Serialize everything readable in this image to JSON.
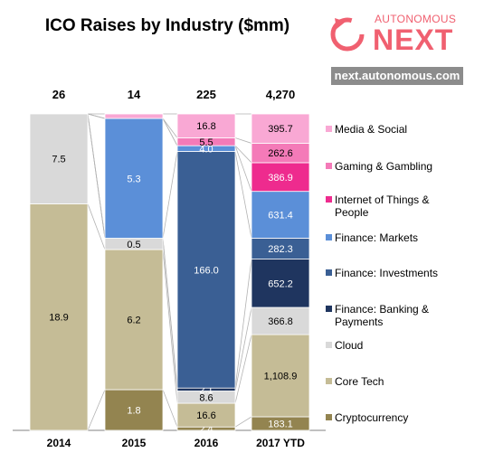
{
  "title": "ICO Raises by Industry ($mm)",
  "logo": {
    "top_text": "AUTONOMOUS",
    "main_text": "NEXT"
  },
  "site": "next.autonomous.com",
  "colors": {
    "media_social": "#f9a8d4",
    "gaming": "#f47ab8",
    "iot": "#ee2b8e",
    "finance_markets": "#5b8fd8",
    "finance_investments": "#3a5f94",
    "finance_banking": "#1f355f",
    "cloud": "#d9d9d9",
    "core_tech": "#c5bc96",
    "crypto": "#938450",
    "brand": "#f06070"
  },
  "chart_data": {
    "type": "bar",
    "stacked": true,
    "normalized_to_100_percent": true,
    "title": "ICO Raises by Industry ($mm)",
    "categories": [
      "2014",
      "2015",
      "2016",
      "2017 YTD"
    ],
    "totals": [
      "26",
      "14",
      "225",
      "4,270"
    ],
    "series": [
      {
        "name": "Cryptocurrency",
        "color": "crypto",
        "values": [
          null,
          1.8,
          2.4,
          183.1
        ],
        "labels": [
          "",
          "1.8",
          "2.4",
          "183.1"
        ]
      },
      {
        "name": "Core Tech",
        "color": "core_tech",
        "values": [
          18.9,
          6.2,
          16.6,
          1108.9
        ],
        "labels": [
          "18.9",
          "6.2",
          "16.6",
          "1,108.9"
        ]
      },
      {
        "name": "Cloud",
        "color": "cloud",
        "values": [
          7.5,
          0.5,
          8.6,
          366.8
        ],
        "labels": [
          "7.5",
          "0.5",
          "8.6",
          "366.8"
        ]
      },
      {
        "name": "Finance: Banking & Payments",
        "color": "finance_banking",
        "values": [
          null,
          null,
          2.1,
          652.2
        ],
        "labels": [
          "",
          "",
          "2.1",
          "652.2"
        ]
      },
      {
        "name": "Finance: Investments",
        "color": "finance_investments",
        "values": [
          null,
          null,
          166.0,
          282.3
        ],
        "labels": [
          "",
          "",
          "166.0",
          "282.3"
        ]
      },
      {
        "name": "Finance: Markets",
        "color": "finance_markets",
        "values": [
          null,
          5.3,
          4.0,
          631.4
        ],
        "labels": [
          "",
          "5.3",
          "4.0",
          "631.4"
        ]
      },
      {
        "name": "Internet of Things & People",
        "color": "iot",
        "values": [
          null,
          null,
          null,
          386.9
        ],
        "labels": [
          "",
          "",
          "",
          "386.9"
        ]
      },
      {
        "name": "Gaming & Gambling",
        "color": "gaming",
        "values": [
          null,
          null,
          5.5,
          262.6
        ],
        "labels": [
          "",
          "",
          "5.5",
          "262.6"
        ]
      },
      {
        "name": "Media & Social",
        "color": "media_social",
        "values": [
          null,
          0.2,
          16.8,
          395.7
        ],
        "labels": [
          "",
          "",
          "16.8",
          "395.7"
        ]
      }
    ],
    "legend_order": [
      "Media & Social",
      "Gaming & Gambling",
      "Internet of Things & People",
      "Finance: Markets",
      "Finance: Investments",
      "Finance: Banking & Payments",
      "Cloud",
      "Core Tech",
      "Cryptocurrency"
    ],
    "legend_position": "right",
    "connector_lines": true,
    "grid": false
  }
}
